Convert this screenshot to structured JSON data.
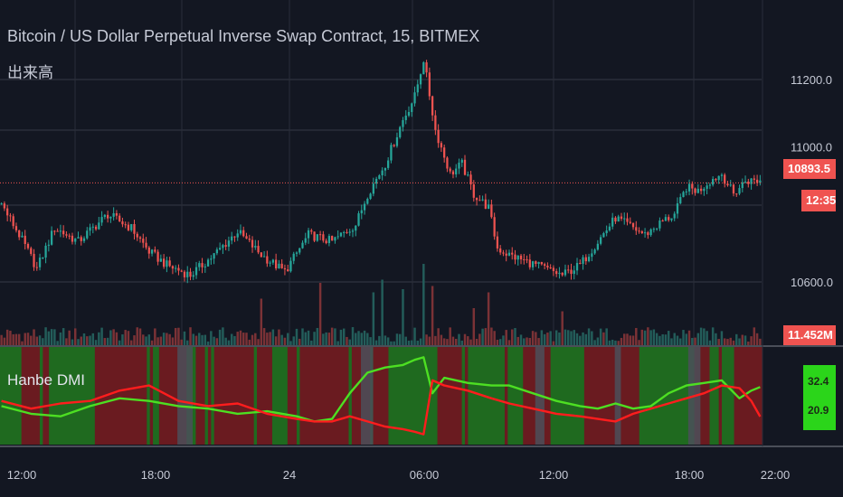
{
  "header": {
    "symbol_title": "Bitcoin / US Dollar Perpetual Inverse Swap Contract, 15, BITMEX",
    "volume_label": "出来高"
  },
  "indicator": {
    "name": "Hanbe DMI",
    "value_up": "32.4",
    "value_down": "20.9"
  },
  "badges": {
    "last_price": "10893.5",
    "countdown": "12:35",
    "volume": "11.452M"
  },
  "colors": {
    "background": "#131722",
    "grid": "#363a45",
    "up": "#26a69a",
    "down": "#ef5350",
    "vol_up": "#235d5a",
    "vol_down": "#7b3236",
    "dmi_plus": "#4ddf22",
    "dmi_minus": "#ff1d1d",
    "dmi_bg_green": "#1f6a1f",
    "dmi_bg_red": "#6a1b20",
    "dmi_bg_gray": "#4b4f5a"
  },
  "chart_data": [
    {
      "type": "candlestick",
      "title": "Bitcoin / US Dollar Perpetual Inverse Swap Contract, 15, BITMEX",
      "y_ticks": [
        "11200.0",
        "11000.0",
        "10600.0"
      ],
      "x_ticks": [
        "12:00",
        "18:00",
        "24",
        "06:00",
        "12:00",
        "18:00",
        "22:00"
      ],
      "ylim": [
        10450,
        11310
      ],
      "last_price": 10893.5,
      "close_path": [
        [
          0,
          10830
        ],
        [
          6,
          10740
        ],
        [
          12,
          10640
        ],
        [
          18,
          10760
        ],
        [
          26,
          10720
        ],
        [
          36,
          10800
        ],
        [
          44,
          10760
        ],
        [
          50,
          10690
        ],
        [
          56,
          10650
        ],
        [
          64,
          10620
        ],
        [
          72,
          10680
        ],
        [
          80,
          10750
        ],
        [
          88,
          10680
        ],
        [
          96,
          10630
        ],
        [
          104,
          10740
        ],
        [
          112,
          10720
        ],
        [
          120,
          10770
        ],
        [
          124,
          10860
        ],
        [
          130,
          10950
        ],
        [
          136,
          11080
        ],
        [
          140,
          11150
        ],
        [
          143,
          11260
        ],
        [
          147,
          11050
        ],
        [
          152,
          10920
        ],
        [
          156,
          10950
        ],
        [
          160,
          10860
        ],
        [
          165,
          10820
        ],
        [
          168,
          10700
        ],
        [
          172,
          10680
        ],
        [
          178,
          10660
        ],
        [
          184,
          10640
        ],
        [
          190,
          10620
        ],
        [
          196,
          10650
        ],
        [
          202,
          10720
        ],
        [
          208,
          10790
        ],
        [
          212,
          10770
        ],
        [
          218,
          10740
        ],
        [
          224,
          10780
        ],
        [
          228,
          10800
        ],
        [
          232,
          10880
        ],
        [
          236,
          10870
        ],
        [
          240,
          10900
        ],
        [
          244,
          10920
        ],
        [
          248,
          10860
        ],
        [
          252,
          10900
        ],
        [
          257,
          10900
        ]
      ],
      "volume": {
        "last_volume": "11.452M",
        "spikes": [
          [
            88,
            0.45
          ],
          [
            108,
            0.7
          ],
          [
            126,
            0.55
          ],
          [
            129,
            0.75
          ],
          [
            136,
            0.6
          ],
          [
            143,
            1.0
          ],
          [
            146,
            0.65
          ],
          [
            160,
            0.3
          ],
          [
            165,
            0.55
          ],
          [
            190,
            0.25
          ]
        ]
      }
    },
    {
      "type": "line",
      "title": "Hanbe DMI",
      "series": [
        {
          "values": [
            [
              0,
              25
            ],
            [
              10,
              22
            ],
            [
              20,
              21
            ],
            [
              30,
              25
            ],
            [
              40,
              28
            ],
            [
              50,
              27
            ],
            [
              60,
              25
            ],
            [
              70,
              24
            ],
            [
              80,
              22
            ],
            [
              90,
              23
            ],
            [
              100,
              21
            ],
            [
              106,
              19
            ],
            [
              112,
              20
            ],
            [
              118,
              30
            ],
            [
              124,
              38
            ],
            [
              130,
              40
            ],
            [
              136,
              41
            ],
            [
              140,
              43
            ],
            [
              143,
              44
            ],
            [
              146,
              30
            ],
            [
              150,
              36
            ],
            [
              158,
              34
            ],
            [
              166,
              33
            ],
            [
              172,
              33
            ],
            [
              180,
              30
            ],
            [
              188,
              27
            ],
            [
              196,
              25
            ],
            [
              202,
              24
            ],
            [
              208,
              26
            ],
            [
              214,
              24
            ],
            [
              220,
              25
            ],
            [
              226,
              30
            ],
            [
              232,
              33
            ],
            [
              238,
              34
            ],
            [
              244,
              35
            ],
            [
              250,
              28
            ],
            [
              254,
              31
            ],
            [
              257,
              32.4
            ]
          ]
        },
        {
          "values": [
            [
              0,
              27
            ],
            [
              10,
              24
            ],
            [
              20,
              26
            ],
            [
              30,
              27
            ],
            [
              40,
              31
            ],
            [
              50,
              33
            ],
            [
              60,
              27
            ],
            [
              70,
              25
            ],
            [
              80,
              26
            ],
            [
              90,
              22
            ],
            [
              100,
              20
            ],
            [
              106,
              19
            ],
            [
              112,
              19
            ],
            [
              118,
              21
            ],
            [
              124,
              19
            ],
            [
              130,
              17
            ],
            [
              136,
              16
            ],
            [
              140,
              15
            ],
            [
              143,
              14
            ],
            [
              146,
              35
            ],
            [
              150,
              33
            ],
            [
              158,
              31
            ],
            [
              166,
              28
            ],
            [
              172,
              26
            ],
            [
              180,
              24
            ],
            [
              188,
              22
            ],
            [
              196,
              21
            ],
            [
              202,
              20
            ],
            [
              208,
              19
            ],
            [
              214,
              22
            ],
            [
              220,
              24
            ],
            [
              226,
              26
            ],
            [
              232,
              28
            ],
            [
              238,
              30
            ],
            [
              244,
              33
            ],
            [
              250,
              32
            ],
            [
              254,
              27
            ],
            [
              257,
              20.9
            ]
          ]
        }
      ],
      "ylim": [
        10,
        48
      ],
      "bg_pattern": "gggggggrrrrrrgrrgggggggggggggggrrrrrrrrrrrrrrrrrgrggrrrrrrrrrgggrrrgrgrrrrrrrrrrrrrgrrrrrgggggrrrgrrrrrrrrrrrrrrrrgrrrrrrgrrrrrggggggggggggggggrrrrrrrrgrggggggggggggrgggggrrrrrrrrrgggggggggggrrrrrrrrrrrrrrrrrrggggggggggggggggggrrrrrgggrggggrrrrrrrrr"
    }
  ]
}
